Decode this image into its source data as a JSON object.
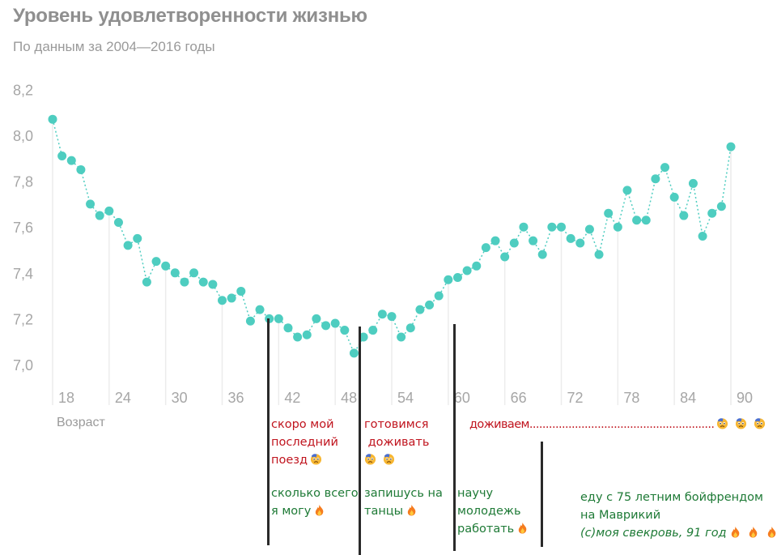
{
  "header": {
    "title": "Уровень удовлетворенности жизнью",
    "subtitle": "По данным за 2004—2016 годы"
  },
  "chart_data": {
    "type": "scatter",
    "title": "Уровень удовлетворенности жизнью",
    "subtitle": "По данным за 2004—2016 годы",
    "xlabel": "Возраст",
    "ylabel": "",
    "x_ticks": [
      "18",
      "24",
      "30",
      "36",
      "42",
      "48",
      "54",
      "60",
      "66",
      "72",
      "78",
      "84",
      "90"
    ],
    "y_ticks": [
      "7,0",
      "7,2",
      "7,4",
      "7,6",
      "7,8",
      "8,0",
      "8,2"
    ],
    "xlim": [
      18,
      90
    ],
    "ylim": [
      6.9,
      8.2
    ],
    "grid": "vertical lines at x ticks",
    "connector": "dotted line",
    "color": "#4ecdc0",
    "x": [
      18,
      19,
      20,
      21,
      22,
      23,
      24,
      25,
      26,
      27,
      28,
      29,
      30,
      31,
      32,
      33,
      34,
      35,
      36,
      37,
      38,
      39,
      40,
      41,
      42,
      43,
      44,
      45,
      46,
      47,
      48,
      49,
      50,
      51,
      52,
      53,
      54,
      55,
      56,
      57,
      58,
      59,
      60,
      61,
      62,
      63,
      64,
      65,
      66,
      67,
      68,
      69,
      70,
      71,
      72,
      73,
      74,
      75,
      76,
      77,
      78,
      79,
      80,
      81,
      82,
      83,
      84,
      85,
      86,
      87,
      88,
      89,
      90
    ],
    "y": [
      8.07,
      7.91,
      7.89,
      7.85,
      7.7,
      7.65,
      7.67,
      7.62,
      7.52,
      7.55,
      7.36,
      7.45,
      7.43,
      7.4,
      7.36,
      7.4,
      7.36,
      7.35,
      7.28,
      7.29,
      7.32,
      7.19,
      7.24,
      7.2,
      7.2,
      7.16,
      7.12,
      7.13,
      7.2,
      7.17,
      7.18,
      7.15,
      7.05,
      7.12,
      7.15,
      7.22,
      7.21,
      7.12,
      7.16,
      7.24,
      7.26,
      7.3,
      7.37,
      7.38,
      7.41,
      7.43,
      7.51,
      7.54,
      7.47,
      7.53,
      7.6,
      7.54,
      7.48,
      7.6,
      7.6,
      7.55,
      7.53,
      7.59,
      7.48,
      7.66,
      7.6,
      7.76,
      7.63,
      7.63,
      7.81,
      7.86,
      7.73,
      7.65,
      7.79,
      7.56,
      7.66,
      7.69,
      7.95
    ]
  },
  "annotations": {
    "a1_red": [
      "скоро мой",
      "последний",
      "поезд"
    ],
    "a1_green": [
      "сколько всего",
      "я могу"
    ],
    "a2_red": [
      "готовимся",
      " доживать"
    ],
    "a2_green": [
      "запишусь на",
      "танцы"
    ],
    "a3_red": "доживаем.........................................................",
    "a3_green": [
      "научу",
      "молодежь",
      "работать"
    ],
    "a4_green": [
      "еду с 75 летним бойфрендом",
      "на Маврикий",
      "(с)моя свекровь, 91 год"
    ],
    "colors": {
      "red": "#c0141e",
      "green": "#1e7a36"
    },
    "icons": {
      "sad": "anxious-face-with-sweat-emoji",
      "fire": "fire-emoji"
    }
  }
}
